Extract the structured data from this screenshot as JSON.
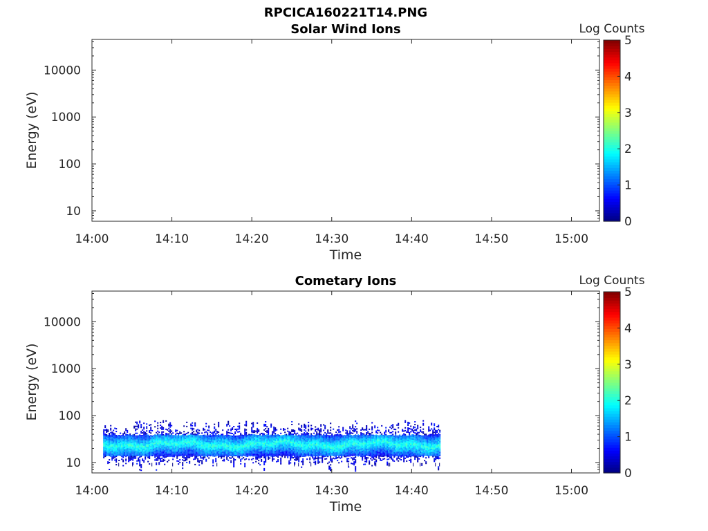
{
  "figure_title": "RPCICA160221T14.PNG",
  "chart_data": [
    {
      "type": "heatmap",
      "title": "Solar Wind Ions",
      "xlabel": "Time",
      "ylabel": "Energy (eV)",
      "x_ticks": [
        "14:00",
        "14:10",
        "14:20",
        "14:30",
        "14:40",
        "14:50",
        "15:00"
      ],
      "xlim_minutes": [
        0,
        63.5
      ],
      "y_scale": "log",
      "y_ticks": [
        "10",
        "100",
        "1000",
        "10000"
      ],
      "ylim": [
        6,
        45000
      ],
      "colorbar": {
        "label": "Log Counts",
        "ticks": [
          "0",
          "1",
          "2",
          "3",
          "4",
          "5"
        ],
        "range": [
          0,
          5
        ],
        "colormap": "jet"
      },
      "data": []
    },
    {
      "type": "heatmap",
      "title": "Cometary Ions",
      "xlabel": "Time",
      "ylabel": "Energy (eV)",
      "x_ticks": [
        "14:00",
        "14:10",
        "14:20",
        "14:30",
        "14:40",
        "14:50",
        "15:00"
      ],
      "xlim_minutes": [
        0,
        63.5
      ],
      "y_scale": "log",
      "y_ticks": [
        "10",
        "100",
        "1000",
        "10000"
      ],
      "ylim": [
        6,
        45000
      ],
      "colorbar": {
        "label": "Log Counts",
        "ticks": [
          "0",
          "1",
          "2",
          "3",
          "4",
          "5"
        ],
        "range": [
          0,
          5
        ],
        "colormap": "jet"
      },
      "data": {
        "time_range_minutes": [
          1.4,
          43.5
        ],
        "energy_band_eV": [
          15,
          35
        ],
        "peak_energy_eV": 25,
        "peak_log_counts": 2.0,
        "sparse_upper_energy_eV": 80,
        "sparse_lower_energy_eV": 8
      }
    }
  ]
}
